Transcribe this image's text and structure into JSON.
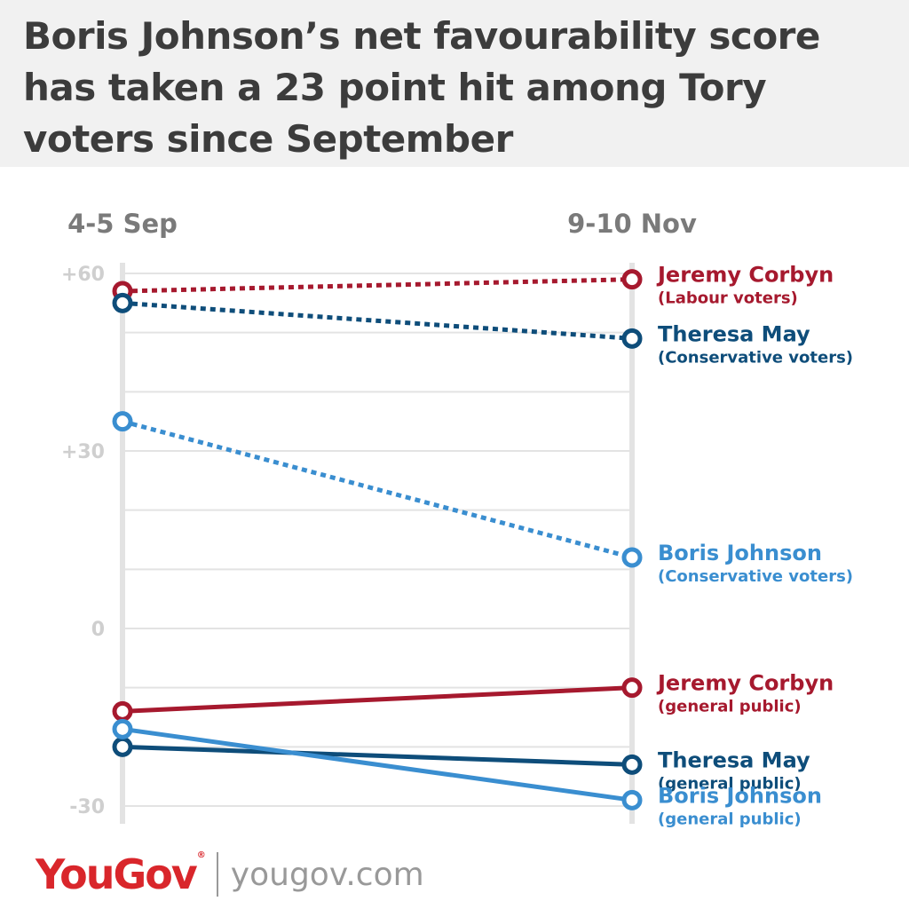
{
  "title": "Boris Johnson’s net favourability score has taken a 23 point hit among Tory voters since September",
  "brand": {
    "logo_text": "YouGov",
    "logo_mark": "®",
    "site": "yougov.com"
  },
  "colors": {
    "background": "#ffffff",
    "header_bg": "#f1f1f1",
    "grid": "#e3e3e3",
    "axis_label": "#cfcfcf",
    "labour_red": "#a6192e",
    "conservative_navy": "#0e4d7a",
    "johnson_blue": "#3a8ed0"
  },
  "chart_data": {
    "type": "line",
    "categories": [
      "4-5 Sep",
      "9-10 Nov"
    ],
    "ylim": [
      -30,
      60
    ],
    "yticks": [
      {
        "value": 60,
        "label": "+60"
      },
      {
        "value": 30,
        "label": "+30"
      },
      {
        "value": 0,
        "label": "0"
      },
      {
        "value": -30,
        "label": "-30"
      }
    ],
    "grid": true,
    "series": [
      {
        "name": "Jeremy Corbyn",
        "group": "(Labour voters)",
        "values": [
          57,
          59
        ],
        "color": "#a6192e",
        "dash": true
      },
      {
        "name": "Theresa May",
        "group": "(Conservative voters)",
        "values": [
          55,
          49
        ],
        "color": "#0e4d7a",
        "dash": true
      },
      {
        "name": "Boris Johnson",
        "group": "(Conservative voters)",
        "values": [
          35,
          12
        ],
        "color": "#3a8ed0",
        "dash": true
      },
      {
        "name": "Jeremy Corbyn",
        "group": "(general public)",
        "values": [
          -14,
          -10
        ],
        "color": "#a6192e",
        "dash": false
      },
      {
        "name": "Theresa May",
        "group": "(general public)",
        "values": [
          -20,
          -23
        ],
        "color": "#0e4d7a",
        "dash": false
      },
      {
        "name": "Boris Johnson",
        "group": "(general public)",
        "values": [
          -17,
          -29
        ],
        "color": "#3a8ed0",
        "dash": false
      }
    ]
  }
}
